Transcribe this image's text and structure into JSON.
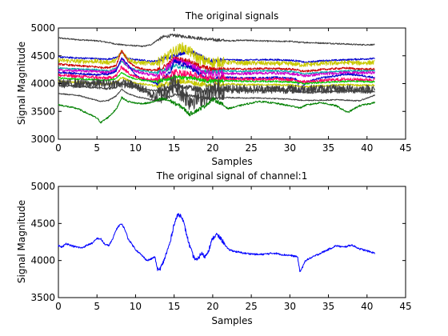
{
  "chart_data": [
    {
      "type": "line",
      "title": "The original signals",
      "xlabel": "Samples",
      "ylabel": "Signal Magnitude",
      "xlim": [
        0,
        45
      ],
      "ylim": [
        3000,
        5000
      ],
      "xticks": [
        0,
        5,
        10,
        15,
        20,
        25,
        30,
        35,
        40,
        45
      ],
      "yticks": [
        3000,
        3500,
        4000,
        4500,
        5000
      ],
      "grid": false,
      "legend": "none",
      "x": [
        0,
        2.5,
        5,
        5.5,
        6.5,
        7.5,
        8.2,
        9,
        10,
        11,
        12,
        12.8,
        13.6,
        14.5,
        15,
        16,
        17,
        18,
        19,
        20,
        21,
        22,
        24,
        26,
        28,
        30,
        30.9,
        31.3,
        32,
        34,
        36,
        37.5,
        39,
        41
      ],
      "series": [
        {
          "color": "#404040",
          "noise": 12,
          "values": [
            4820,
            4790,
            4770,
            4760,
            4740,
            4710,
            4700,
            4690,
            4680,
            4670,
            4700,
            4780,
            4840,
            4860,
            4870,
            4850,
            4840,
            4820,
            4800,
            4790,
            4780,
            4770,
            4780,
            4770,
            4760,
            4760,
            4750,
            4740,
            4740,
            4730,
            4720,
            4710,
            4700,
            4700
          ]
        },
        {
          "color": "#0000cc",
          "noise": 15,
          "values": [
            4480,
            4460,
            4450,
            4440,
            4440,
            4470,
            4560,
            4450,
            4430,
            4420,
            4400,
            4410,
            4450,
            4470,
            4500,
            4550,
            4590,
            4520,
            4450,
            4400,
            4420,
            4430,
            4420,
            4430,
            4430,
            4420,
            4410,
            4400,
            4380,
            4410,
            4420,
            4430,
            4440,
            4450
          ]
        },
        {
          "color": "#c8c800",
          "noise": 40,
          "values": [
            4420,
            4400,
            4400,
            4390,
            4380,
            4420,
            4580,
            4450,
            4380,
            4370,
            4360,
            4380,
            4430,
            4520,
            4580,
            4650,
            4580,
            4460,
            4400,
            4380,
            4390,
            4380,
            4370,
            4370,
            4360,
            4360,
            4350,
            4340,
            4340,
            4360,
            4370,
            4380,
            4370,
            4380
          ]
        },
        {
          "color": "#cc0000",
          "noise": 18,
          "values": [
            4350,
            4320,
            4300,
            4290,
            4290,
            4330,
            4600,
            4400,
            4300,
            4260,
            4240,
            4240,
            4290,
            4380,
            4450,
            4430,
            4400,
            4330,
            4290,
            4250,
            4260,
            4270,
            4260,
            4270,
            4270,
            4260,
            4250,
            4230,
            4220,
            4250,
            4270,
            4280,
            4260,
            4260
          ]
        },
        {
          "color": "#00aaaa",
          "noise": 15,
          "values": [
            4280,
            4260,
            4250,
            4240,
            4230,
            4280,
            4400,
            4300,
            4250,
            4230,
            4210,
            4200,
            4230,
            4280,
            4320,
            4300,
            4290,
            4250,
            4220,
            4210,
            4220,
            4230,
            4220,
            4230,
            4230,
            4220,
            4210,
            4190,
            4180,
            4200,
            4220,
            4230,
            4230,
            4230
          ]
        },
        {
          "color": "#cc00cc",
          "noise": 25,
          "values": [
            4240,
            4230,
            4220,
            4210,
            4200,
            4250,
            4450,
            4300,
            4220,
            4190,
            4160,
            4150,
            4200,
            4350,
            4420,
            4380,
            4330,
            4260,
            4200,
            4180,
            4190,
            4180,
            4180,
            4190,
            4190,
            4180,
            4170,
            4150,
            4140,
            4170,
            4190,
            4200,
            4190,
            4200
          ]
        },
        {
          "color": "#0000cc",
          "noise": 18,
          "values": [
            4200,
            4180,
            4160,
            4170,
            4170,
            4230,
            4460,
            4340,
            4150,
            4080,
            4050,
            4000,
            4080,
            4200,
            4400,
            4350,
            4300,
            4200,
            4100,
            4080,
            4100,
            4110,
            4100,
            4100,
            4110,
            4100,
            4080,
            3850,
            4020,
            4100,
            4140,
            4170,
            4150,
            4110
          ]
        },
        {
          "color": "#ff0066",
          "noise": 30,
          "values": [
            4150,
            4130,
            4110,
            4100,
            4100,
            4140,
            4300,
            4200,
            4120,
            4100,
            4080,
            4080,
            4100,
            4150,
            4200,
            4180,
            4160,
            4120,
            4090,
            4080,
            4090,
            4090,
            4080,
            4080,
            4080,
            4070,
            4060,
            4040,
            4030,
            4050,
            4070,
            4080,
            4070,
            4070
          ]
        },
        {
          "color": "#00cc00",
          "noise": 15,
          "values": [
            4100,
            4080,
            4070,
            4060,
            4060,
            4090,
            4200,
            4130,
            4080,
            4060,
            4040,
            4040,
            4060,
            4090,
            4120,
            4110,
            4100,
            4080,
            4050,
            4040,
            4050,
            4050,
            4040,
            4040,
            4040,
            4030,
            4020,
            4010,
            4000,
            4020,
            4030,
            4040,
            4040,
            4030
          ]
        },
        {
          "color": "#c8c800",
          "noise": 18,
          "values": [
            4040,
            4020,
            4000,
            3990,
            3990,
            4020,
            4120,
            4060,
            4010,
            3990,
            3970,
            3960,
            3980,
            4010,
            4050,
            4040,
            4030,
            4000,
            3980,
            3970,
            3980,
            3990,
            3980,
            3980,
            3980,
            3970,
            3960,
            3950,
            3940,
            3960,
            3970,
            3980,
            3970,
            3970
          ]
        },
        {
          "color": "#404040",
          "noise": 20,
          "values": [
            3970,
            3950,
            3930,
            3920,
            3910,
            3940,
            4010,
            3960,
            3930,
            3900,
            3880,
            3870,
            3890,
            3920,
            3950,
            3940,
            3930,
            3900,
            3880,
            3870,
            3880,
            3890,
            3880,
            3880,
            3880,
            3870,
            3860,
            3850,
            3840,
            3850,
            3860,
            3870,
            3860,
            3860
          ]
        },
        {
          "color": "#404040",
          "noise": 10,
          "values": [
            3820,
            3790,
            3700,
            3680,
            3700,
            3780,
            3900,
            3820,
            3770,
            3740,
            3710,
            3690,
            3720,
            3770,
            3800,
            3790,
            3780,
            3760,
            3740,
            3730,
            3740,
            3750,
            3740,
            3740,
            3730,
            3720,
            3710,
            3700,
            3700,
            3700,
            3710,
            3700,
            3690,
            3790
          ]
        },
        {
          "color": "#404040",
          "noise": 80,
          "values": [
            4000,
            4000,
            4000,
            4000,
            4000,
            4000,
            4000,
            4000,
            3950,
            3900,
            3800,
            3760,
            3850,
            3950,
            4000,
            3850,
            3700,
            3750,
            3800,
            3850,
            3900,
            3900,
            3900,
            3900,
            3900,
            3900,
            3900,
            3900,
            3900,
            3900,
            3900,
            3900,
            3900,
            3900
          ]
        },
        {
          "color": "#008000",
          "noise": 15,
          "values": [
            3620,
            3550,
            3380,
            3300,
            3400,
            3540,
            3750,
            3680,
            3650,
            3640,
            3660,
            3700,
            3720,
            3690,
            3650,
            3580,
            3450,
            3520,
            3600,
            3720,
            3650,
            3550,
            3620,
            3680,
            3650,
            3600,
            3580,
            3560,
            3610,
            3660,
            3600,
            3480,
            3600,
            3660
          ]
        }
      ]
    },
    {
      "type": "line",
      "title": "The original signal of channel:1",
      "xlabel": "Samples",
      "ylabel": "Signal Magnitude",
      "xlim": [
        0,
        45
      ],
      "ylim": [
        3500,
        5000
      ],
      "xticks": [
        0,
        5,
        10,
        15,
        20,
        25,
        30,
        35,
        40,
        45
      ],
      "yticks": [
        3500,
        4000,
        4500,
        5000
      ],
      "grid": false,
      "legend": "none",
      "x": [
        0,
        0.5,
        1,
        2,
        3,
        4,
        4.5,
        5,
        5.5,
        6,
        6.5,
        7,
        7.5,
        8,
        8.3,
        8.7,
        9,
        10,
        11,
        11.5,
        12,
        12.5,
        12.8,
        13,
        13.5,
        14,
        14.5,
        15,
        15.5,
        16,
        16.5,
        17,
        17.5,
        18,
        18.5,
        19,
        19.5,
        20,
        20.5,
        21,
        21.5,
        22,
        23,
        24,
        25,
        26,
        27,
        28,
        29,
        30,
        30.5,
        31,
        31.3,
        31.7,
        32,
        33,
        34,
        35,
        36,
        37,
        38,
        39,
        40,
        41
      ],
      "series": [
        {
          "color": "#0000ff",
          "noise": 12,
          "values": [
            4200,
            4180,
            4230,
            4190,
            4170,
            4220,
            4240,
            4300,
            4290,
            4220,
            4200,
            4280,
            4420,
            4490,
            4480,
            4400,
            4300,
            4150,
            4050,
            4000,
            4020,
            4050,
            3900,
            3860,
            3950,
            4100,
            4250,
            4500,
            4620,
            4600,
            4400,
            4200,
            4050,
            4000,
            4100,
            4050,
            4150,
            4300,
            4350,
            4300,
            4230,
            4150,
            4120,
            4100,
            4090,
            4080,
            4090,
            4100,
            4080,
            4070,
            4060,
            4050,
            3850,
            3920,
            4000,
            4050,
            4100,
            4150,
            4200,
            4180,
            4210,
            4160,
            4130,
            4100
          ]
        }
      ]
    }
  ]
}
